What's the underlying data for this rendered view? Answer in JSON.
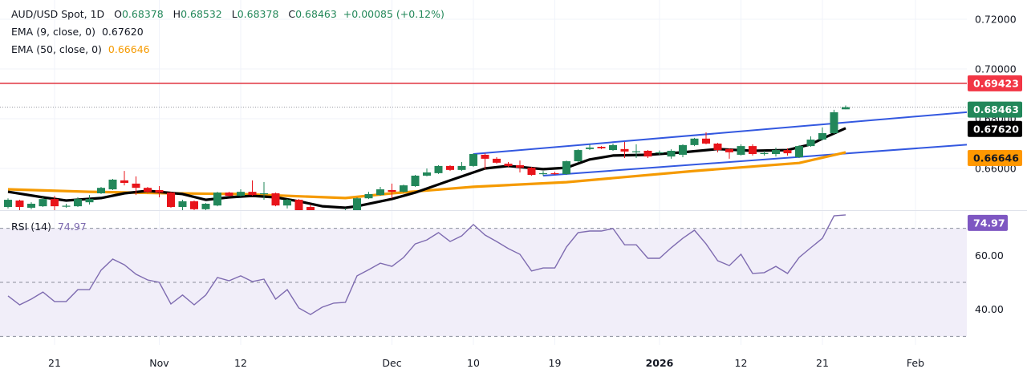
{
  "header": {
    "symbol": "AUD/USD Spot, 1D",
    "open_label": "O",
    "open": "0.68378",
    "high_label": "H",
    "high": "0.68532",
    "low_label": "L",
    "low": "0.68378",
    "close_label": "C",
    "close": "0.68463",
    "change": "+0.00085 (+0.12%)",
    "ema9_label": "EMA (9, close, 0)",
    "ema9_value": "0.67620",
    "ema50_label": "EMA (50, close, 0)",
    "ema50_value": "0.66646",
    "rsi_label": "RSI (14)",
    "rsi_value": "74.97"
  },
  "colors": {
    "up": "#22875a",
    "down": "#e8141a",
    "ema9": "#000000",
    "ema50": "#f59a00",
    "channel": "#3358e0",
    "resistance": "#e0303c",
    "rsi": "#7e6bb0",
    "rsi_band": "#f1eef9",
    "badge_resistance": "#f23645",
    "badge_price": "#22875a",
    "badge_ema9": "#000000",
    "badge_ema50": "#ff9800",
    "badge_rsi": "#7e57c2"
  },
  "chart_data": [
    {
      "type": "candlestick",
      "title": "AUD/USD Spot, 1D",
      "ylim": [
        0.64,
        0.725
      ],
      "y_ticks": [
        "0.72000",
        "0.70000",
        "0.68000",
        "0.66000"
      ],
      "x_ticks": [
        {
          "label": "21",
          "date": "2025-10-21"
        },
        {
          "label": "Nov",
          "date": "2025-11-03"
        },
        {
          "label": "12",
          "date": "2025-11-12"
        },
        {
          "label": "Dec",
          "date": "2025-12-01"
        },
        {
          "label": "10",
          "date": "2025-12-10"
        },
        {
          "label": "19",
          "date": "2025-12-19"
        },
        {
          "label": "2026",
          "date": "2026-01-01"
        },
        {
          "label": "12",
          "date": "2026-01-12"
        },
        {
          "label": "21",
          "date": "2026-01-21"
        },
        {
          "label": "Feb",
          "date": "2026-02-02"
        }
      ],
      "candles": [
        [
          "2025-10-15",
          0.6445,
          0.648,
          0.6439,
          0.6474
        ],
        [
          "2025-10-16",
          0.6471,
          0.6474,
          0.6432,
          0.6445
        ],
        [
          "2025-10-17",
          0.6442,
          0.6464,
          0.6436,
          0.6458
        ],
        [
          "2025-10-20",
          0.6448,
          0.6484,
          0.6445,
          0.6477
        ],
        [
          "2025-10-21",
          0.6477,
          0.649,
          0.6432,
          0.6448
        ],
        [
          "2025-10-22",
          0.6448,
          0.6458,
          0.6442,
          0.645
        ],
        [
          "2025-10-23",
          0.6448,
          0.6484,
          0.6445,
          0.6477
        ],
        [
          "2025-10-24",
          0.6464,
          0.6493,
          0.6455,
          0.6477
        ],
        [
          "2025-10-27",
          0.65,
          0.6526,
          0.6497,
          0.6522
        ],
        [
          "2025-10-28",
          0.6516,
          0.6558,
          0.6513,
          0.6555
        ],
        [
          "2025-10-29",
          0.6552,
          0.659,
          0.6532,
          0.6542
        ],
        [
          "2025-10-30",
          0.6539,
          0.6568,
          0.6493,
          0.6522
        ],
        [
          "2025-10-31",
          0.6522,
          0.6526,
          0.65,
          0.6506
        ],
        [
          "2025-11-03",
          0.6513,
          0.6529,
          0.6484,
          0.6503
        ],
        [
          "2025-11-04",
          0.6503,
          0.6506,
          0.6442,
          0.6445
        ],
        [
          "2025-11-05",
          0.6445,
          0.6474,
          0.6432,
          0.6468
        ],
        [
          "2025-11-06",
          0.6468,
          0.6471,
          0.6432,
          0.6436
        ],
        [
          "2025-11-07",
          0.6436,
          0.6461,
          0.6429,
          0.6458
        ],
        [
          "2025-11-10",
          0.6451,
          0.6506,
          0.6448,
          0.6503
        ],
        [
          "2025-11-11",
          0.6503,
          0.6506,
          0.6487,
          0.649
        ],
        [
          "2025-11-12",
          0.649,
          0.6516,
          0.6487,
          0.6506
        ],
        [
          "2025-11-13",
          0.6506,
          0.6552,
          0.649,
          0.6493
        ],
        [
          "2025-11-14",
          0.6497,
          0.6545,
          0.6474,
          0.65
        ],
        [
          "2025-11-17",
          0.65,
          0.6503,
          0.6448,
          0.6451
        ],
        [
          "2025-11-18",
          0.6451,
          0.6477,
          0.6439,
          0.6474
        ],
        [
          "2025-11-19",
          0.6474,
          0.6477,
          0.6426,
          0.6429
        ],
        [
          "2025-11-20",
          0.6445,
          0.6455,
          0.64,
          0.6406
        ],
        [
          "2025-11-21",
          0.6406,
          0.6418,
          0.6385,
          0.6395
        ],
        [
          "2025-11-24",
          0.6395,
          0.642,
          0.638,
          0.641
        ],
        [
          "2025-11-25",
          0.641,
          0.644,
          0.6402,
          0.6432
        ],
        [
          "2025-11-26",
          0.6432,
          0.6484,
          0.6426,
          0.648
        ],
        [
          "2025-11-27",
          0.648,
          0.6506,
          0.6477,
          0.6497
        ],
        [
          "2025-11-28",
          0.6493,
          0.6526,
          0.649,
          0.6516
        ],
        [
          "2025-12-01",
          0.6513,
          0.6539,
          0.648,
          0.6506
        ],
        [
          "2025-12-02",
          0.6506,
          0.6535,
          0.6503,
          0.6532
        ],
        [
          "2025-12-03",
          0.6529,
          0.6574,
          0.6526,
          0.6571
        ],
        [
          "2025-12-04",
          0.6571,
          0.66,
          0.6568,
          0.6584
        ],
        [
          "2025-12-05",
          0.6581,
          0.6613,
          0.6578,
          0.661
        ],
        [
          "2025-12-08",
          0.661,
          0.6613,
          0.659,
          0.6594
        ],
        [
          "2025-12-09",
          0.6594,
          0.6626,
          0.659,
          0.661
        ],
        [
          "2025-12-10",
          0.661,
          0.6661,
          0.6606,
          0.6658
        ],
        [
          "2025-12-11",
          0.6655,
          0.6661,
          0.6597,
          0.6639
        ],
        [
          "2025-12-12",
          0.6639,
          0.6645,
          0.6619,
          0.6623
        ],
        [
          "2025-12-15",
          0.6619,
          0.6626,
          0.6606,
          0.661
        ],
        [
          "2025-12-16",
          0.6613,
          0.6632,
          0.6584,
          0.6603
        ],
        [
          "2025-12-17",
          0.6603,
          0.6606,
          0.6571,
          0.6574
        ],
        [
          "2025-12-18",
          0.6577,
          0.659,
          0.6571,
          0.6581
        ],
        [
          "2025-12-19",
          0.6581,
          0.6587,
          0.6574,
          0.6578
        ],
        [
          "2025-12-22",
          0.6577,
          0.6632,
          0.6574,
          0.6629
        ],
        [
          "2025-12-23",
          0.6629,
          0.6677,
          0.6626,
          0.6674
        ],
        [
          "2025-12-24",
          0.6678,
          0.6697,
          0.6674,
          0.6684
        ],
        [
          "2025-12-25",
          0.6687,
          0.669,
          0.6678,
          0.6681
        ],
        [
          "2025-12-26",
          0.6674,
          0.67,
          0.6671,
          0.6694
        ],
        [
          "2025-12-29",
          0.6678,
          0.6707,
          0.6642,
          0.6668
        ],
        [
          "2025-12-30",
          0.6667,
          0.6697,
          0.6642,
          0.6669
        ],
        [
          "2025-12-31",
          0.6671,
          0.6674,
          0.6642,
          0.6648
        ],
        [
          "2026-01-01",
          0.6662,
          0.6672,
          0.6655,
          0.6665
        ],
        [
          "2026-01-02",
          0.6648,
          0.6677,
          0.6639,
          0.6671
        ],
        [
          "2026-01-05",
          0.6655,
          0.6697,
          0.6645,
          0.6694
        ],
        [
          "2026-01-06",
          0.6694,
          0.6723,
          0.669,
          0.672
        ],
        [
          "2026-01-07",
          0.672,
          0.6745,
          0.6697,
          0.67
        ],
        [
          "2026-01-08",
          0.67,
          0.6703,
          0.6665,
          0.6674
        ],
        [
          "2026-01-09",
          0.6678,
          0.6681,
          0.6639,
          0.6665
        ],
        [
          "2026-01-12",
          0.6655,
          0.6697,
          0.6652,
          0.669
        ],
        [
          "2026-01-13",
          0.669,
          0.6697,
          0.6652,
          0.6658
        ],
        [
          "2026-01-14",
          0.666,
          0.667,
          0.6652,
          0.6662
        ],
        [
          "2026-01-15",
          0.6658,
          0.6684,
          0.6648,
          0.6674
        ],
        [
          "2026-01-16",
          0.6674,
          0.6681,
          0.6652,
          0.6661
        ],
        [
          "2026-01-19",
          0.6645,
          0.6694,
          0.6642,
          0.669
        ],
        [
          "2026-01-20",
          0.669,
          0.6729,
          0.6687,
          0.6716
        ],
        [
          "2026-01-21",
          0.6716,
          0.6765,
          0.6713,
          0.6742
        ],
        [
          "2026-01-22",
          0.6742,
          0.6836,
          0.6739,
          0.6826
        ],
        [
          "2026-01-23",
          0.68378,
          0.68532,
          0.68378,
          0.68463
        ]
      ],
      "series": [
        {
          "name": "EMA (9, close, 0)",
          "points": [
            [
              "2025-10-15",
              0.6506
            ],
            [
              "2025-10-20",
              0.6484
            ],
            [
              "2025-10-22",
              0.6471
            ],
            [
              "2025-10-27",
              0.6481
            ],
            [
              "2025-10-29",
              0.65
            ],
            [
              "2025-10-31",
              0.651
            ],
            [
              "2025-11-05",
              0.6497
            ],
            [
              "2025-11-07",
              0.6474
            ],
            [
              "2025-11-11",
              0.6484
            ],
            [
              "2025-11-13",
              0.649
            ],
            [
              "2025-11-17",
              0.6484
            ],
            [
              "2025-11-19",
              0.6468
            ],
            [
              "2025-11-21",
              0.6448
            ],
            [
              "2025-11-25",
              0.6442
            ],
            [
              "2025-11-26",
              0.6448
            ],
            [
              "2025-12-01",
              0.6477
            ],
            [
              "2025-12-03",
              0.6503
            ],
            [
              "2025-12-08",
              0.6552
            ],
            [
              "2025-12-11",
              0.66
            ],
            [
              "2025-12-15",
              0.661
            ],
            [
              "2025-12-18",
              0.6597
            ],
            [
              "2025-12-22",
              0.6603
            ],
            [
              "2025-12-24",
              0.6636
            ],
            [
              "2025-12-26",
              0.6652
            ],
            [
              "2025-12-31",
              0.6655
            ],
            [
              "2026-01-05",
              0.6665
            ],
            [
              "2026-01-08",
              0.6678
            ],
            [
              "2026-01-13",
              0.6671
            ],
            [
              "2026-01-16",
              0.6674
            ],
            [
              "2026-01-20",
              0.6697
            ],
            [
              "2026-01-21",
              0.672
            ],
            [
              "2026-01-23",
              0.6762
            ]
          ]
        },
        {
          "name": "EMA (50, close, 0)",
          "points": [
            [
              "2025-10-15",
              0.6516
            ],
            [
              "2025-10-24",
              0.6506
            ],
            [
              "2025-11-04",
              0.65
            ],
            [
              "2025-11-12",
              0.6497
            ],
            [
              "2025-11-25",
              0.6481
            ],
            [
              "2025-12-01",
              0.65
            ],
            [
              "2025-12-10",
              0.6526
            ],
            [
              "2025-12-22",
              0.6545
            ],
            [
              "2026-01-06",
              0.659
            ],
            [
              "2026-01-19",
              0.6622
            ],
            [
              "2026-01-23",
              0.6665
            ]
          ]
        }
      ],
      "channel": {
        "upper": [
          [
            "2025-12-10",
            0.6658
          ],
          [
            "2026-01-23",
            0.6785
          ]
        ],
        "lower": [
          [
            "2025-12-18",
            0.6571
          ],
          [
            "2026-01-23",
            0.666
          ]
        ]
      },
      "resistance": 0.69423,
      "last_price": 0.68463,
      "price_badges": {
        "resistance": "0.69423",
        "last": "0.68463",
        "ema9": "0.67620",
        "ema50": "0.66646"
      }
    },
    {
      "type": "line",
      "title": "RSI (14)",
      "ylim": [
        25,
        80
      ],
      "y_ticks": [
        "60.00",
        "40.00"
      ],
      "levels": [
        70,
        50,
        30
      ],
      "values": [
        45.0,
        41.7,
        43.8,
        46.4,
        42.9,
        42.9,
        47.3,
        47.3,
        54.5,
        58.6,
        56.5,
        53.0,
        50.9,
        50.0,
        42.0,
        45.3,
        41.7,
        45.3,
        51.8,
        50.6,
        52.4,
        50.3,
        51.2,
        43.8,
        47.3,
        40.5,
        38.1,
        40.8,
        42.3,
        42.6,
        52.4,
        54.7,
        57.1,
        55.9,
        59.2,
        64.2,
        65.7,
        68.4,
        65.1,
        67.2,
        71.4,
        67.5,
        65.1,
        62.5,
        60.4,
        54.2,
        55.3,
        55.3,
        63.1,
        68.4,
        69.0,
        69.0,
        69.9,
        63.9,
        63.9,
        58.9,
        58.9,
        62.8,
        66.3,
        69.3,
        64.2,
        58.0,
        56.2,
        60.4,
        53.3,
        53.6,
        55.9,
        53.3,
        59.2,
        62.8,
        66.3,
        74.6,
        74.97
      ],
      "badge": "74.97"
    }
  ]
}
